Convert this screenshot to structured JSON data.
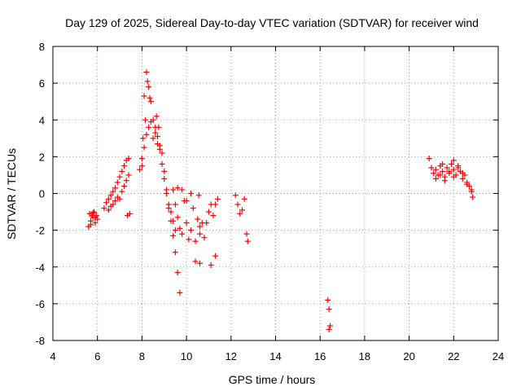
{
  "chart_data": {
    "type": "scatter",
    "title": "Day 129 of 2025, Sidereal Day-to-day VTEC variation (SDTVAR) for receiver wind",
    "xlabel": "GPS time / hours",
    "ylabel": "SDTVAR / TECUs",
    "xlim": [
      4,
      24
    ],
    "ylim": [
      -8,
      8
    ],
    "xticks": [
      "4",
      "6",
      "8",
      "10",
      "12",
      "14",
      "16",
      "18",
      "20",
      "22",
      "24"
    ],
    "yticks": [
      "-8",
      "-6",
      "-4",
      "-2",
      "0",
      "2",
      "4",
      "6",
      "8"
    ],
    "grid": true,
    "marker": "+",
    "color": "#ff0000",
    "series": [
      {
        "name": "SDTVAR",
        "x": [
          5.6,
          5.65,
          5.7,
          5.75,
          5.8,
          5.85,
          5.9,
          5.95,
          6.0,
          5.7,
          5.8,
          5.9,
          6.3,
          6.4,
          6.5,
          6.6,
          6.7,
          6.8,
          6.9,
          7.0,
          7.1,
          7.2,
          7.3,
          7.4,
          7.45,
          6.5,
          6.6,
          6.7,
          6.8,
          6.9,
          7.0,
          7.1,
          7.2,
          7.3,
          7.4,
          7.35,
          7.9,
          8.0,
          8.05,
          8.1,
          8.15,
          8.2,
          8.25,
          8.3,
          8.35,
          8.4,
          8.0,
          8.1,
          8.2,
          8.3,
          8.4,
          8.5,
          8.6,
          8.7,
          8.8,
          8.9,
          9.0,
          9.1,
          9.2,
          9.3,
          9.4,
          9.5,
          9.6,
          9.7,
          8.5,
          8.6,
          8.65,
          8.7,
          8.75,
          8.8,
          8.9,
          9.0,
          9.1,
          9.2,
          9.3,
          9.4,
          9.5,
          9.4,
          9.5,
          9.6,
          9.7,
          9.8,
          9.9,
          10.0,
          10.1,
          10.2,
          10.3,
          10.4,
          10.5,
          10.6,
          10.7,
          9.6,
          9.8,
          10.0,
          10.2,
          10.4,
          10.6,
          10.55,
          10.6,
          10.8,
          10.9,
          11.0,
          11.1,
          11.2,
          11.3,
          11.4,
          11.1,
          11.3,
          12.2,
          12.3,
          12.4,
          12.5,
          12.6,
          12.7,
          12.75,
          16.35,
          16.4,
          16.45,
          16.4,
          20.9,
          21.0,
          21.1,
          21.2,
          21.3,
          21.4,
          21.5,
          21.6,
          21.7,
          21.8,
          21.9,
          22.0,
          22.1,
          22.2,
          22.3,
          22.4,
          22.5,
          22.6,
          22.7,
          22.8,
          22.85,
          21.2,
          21.4,
          21.6,
          21.8,
          22.0,
          22.2,
          22.4,
          22.6,
          22.8,
          21.5,
          22.0
        ],
        "y": [
          -1.8,
          -1.1,
          -1.5,
          -1.2,
          -1.3,
          -1.0,
          -1.6,
          -1.2,
          -1.4,
          -1.7,
          -1.05,
          -1.3,
          -0.8,
          -0.5,
          -0.3,
          -0.1,
          0.1,
          0.3,
          0.6,
          0.9,
          1.2,
          1.5,
          1.8,
          1.9,
          -1.1,
          -0.9,
          -0.7,
          -0.6,
          -0.4,
          -0.2,
          -0.3,
          0.1,
          0.4,
          0.7,
          1.0,
          -1.2,
          1.3,
          1.9,
          3.0,
          5.3,
          4.0,
          6.6,
          6.1,
          5.8,
          5.2,
          5.0,
          1.5,
          2.5,
          3.2,
          3.6,
          3.9,
          4.0,
          3.6,
          3.1,
          2.4,
          1.6,
          0.8,
          0.0,
          -0.8,
          -1.5,
          -2.3,
          -3.2,
          -4.3,
          -5.4,
          3.0,
          3.3,
          4.2,
          2.7,
          3.6,
          2.6,
          2.2,
          1.2,
          0.2,
          -0.6,
          -1.0,
          -1.5,
          -2.0,
          0.2,
          -0.6,
          -1.3,
          -1.9,
          -2.2,
          -0.4,
          -1.6,
          -2.5,
          -2.0,
          -0.8,
          -2.6,
          -1.4,
          -2.2,
          -1.6,
          0.3,
          0.2,
          -0.4,
          0.0,
          -3.7,
          -3.8,
          -0.1,
          -1.8,
          -2.4,
          -1.6,
          -1.0,
          -0.6,
          -1.2,
          -0.6,
          -0.3,
          -3.9,
          -3.4,
          -0.1,
          -0.6,
          -1.1,
          -0.9,
          -0.3,
          -2.2,
          -2.6,
          -5.8,
          -6.3,
          -7.2,
          -7.4,
          1.9,
          1.4,
          1.1,
          1.3,
          1.0,
          1.5,
          1.2,
          0.9,
          1.4,
          1.1,
          1.6,
          1.3,
          1.0,
          1.5,
          1.2,
          0.8,
          1.0,
          0.5,
          0.4,
          0.1,
          -0.2,
          0.8,
          1.0,
          0.7,
          1.2,
          0.9,
          1.4,
          1.1,
          0.6,
          0.2,
          1.6,
          1.8
        ]
      }
    ]
  }
}
